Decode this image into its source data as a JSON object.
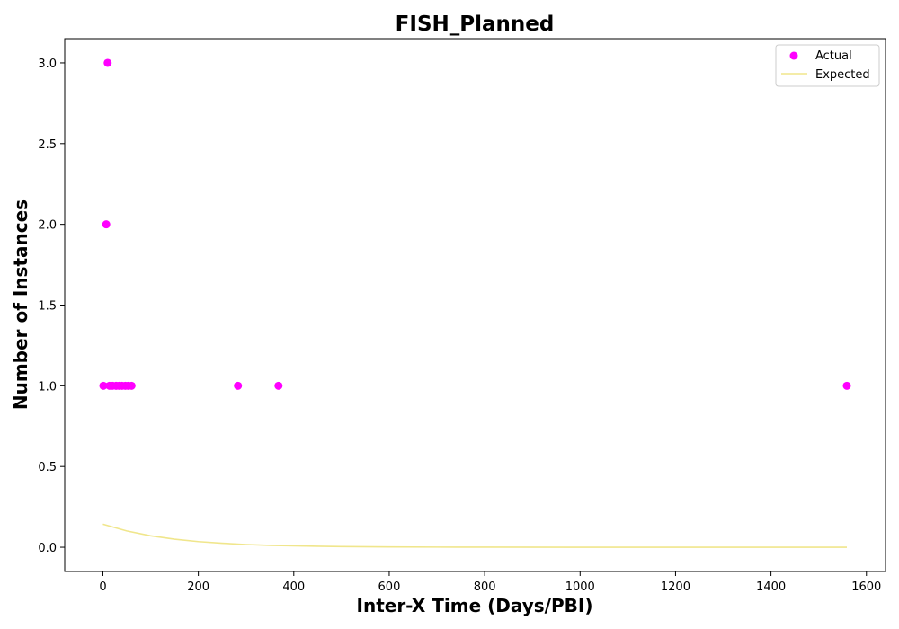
{
  "chart_data": {
    "type": "scatter",
    "title": "FISH_Planned",
    "xlabel": "Inter-X Time (Days/PBI)",
    "ylabel": "Number of Instances",
    "xlim": [
      -80,
      1640
    ],
    "ylim": [
      -0.15,
      3.15
    ],
    "xticks": [
      0,
      200,
      400,
      600,
      800,
      1000,
      1200,
      1400,
      1600
    ],
    "yticks": [
      0.0,
      0.5,
      1.0,
      1.5,
      2.0,
      2.5,
      3.0
    ],
    "xtick_labels": [
      "0",
      "200",
      "400",
      "600",
      "800",
      "1000",
      "1200",
      "1400",
      "1600"
    ],
    "ytick_labels": [
      "0.0",
      "0.5",
      "1.0",
      "1.5",
      "2.0",
      "2.5",
      "3.0"
    ],
    "legend_position": "top-right",
    "series": [
      {
        "name": "Actual",
        "kind": "scatter",
        "color": "#ff00ff",
        "points": [
          {
            "x": 1,
            "y": 1
          },
          {
            "x": 7,
            "y": 2
          },
          {
            "x": 10,
            "y": 3
          },
          {
            "x": 14,
            "y": 1
          },
          {
            "x": 20,
            "y": 1
          },
          {
            "x": 28,
            "y": 1
          },
          {
            "x": 34,
            "y": 1
          },
          {
            "x": 40,
            "y": 1
          },
          {
            "x": 47,
            "y": 1
          },
          {
            "x": 53,
            "y": 1
          },
          {
            "x": 60,
            "y": 1
          },
          {
            "x": 283,
            "y": 1
          },
          {
            "x": 368,
            "y": 1
          },
          {
            "x": 1559,
            "y": 1
          }
        ]
      },
      {
        "name": "Expected",
        "kind": "line",
        "color": "#f0e68c",
        "points": [
          {
            "x": 0,
            "y": 0.143
          },
          {
            "x": 50,
            "y": 0.101
          },
          {
            "x": 100,
            "y": 0.071
          },
          {
            "x": 150,
            "y": 0.05
          },
          {
            "x": 200,
            "y": 0.035
          },
          {
            "x": 250,
            "y": 0.025
          },
          {
            "x": 300,
            "y": 0.017
          },
          {
            "x": 350,
            "y": 0.012
          },
          {
            "x": 400,
            "y": 0.009
          },
          {
            "x": 450,
            "y": 0.006
          },
          {
            "x": 500,
            "y": 0.004
          },
          {
            "x": 600,
            "y": 0.002
          },
          {
            "x": 700,
            "y": 0.001
          },
          {
            "x": 800,
            "y": 0.0005
          },
          {
            "x": 1000,
            "y": 0.0001
          },
          {
            "x": 1200,
            "y": 0.0
          },
          {
            "x": 1400,
            "y": 0.0
          },
          {
            "x": 1559,
            "y": 0.0
          }
        ]
      }
    ]
  }
}
